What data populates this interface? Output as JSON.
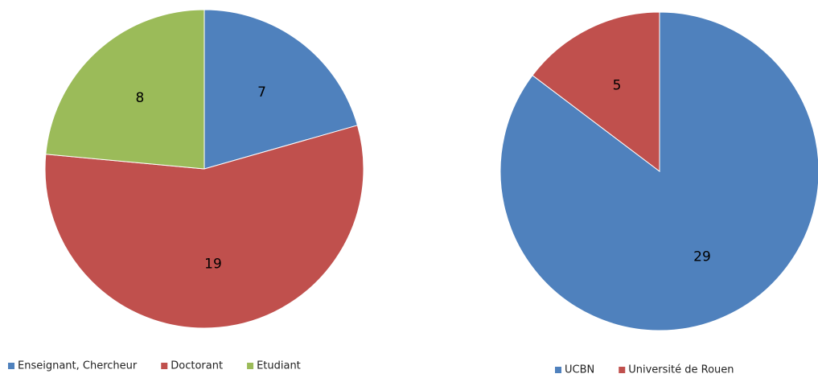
{
  "chart_data": [
    {
      "type": "pie",
      "categories": [
        "Enseignant, Chercheur",
        "Doctorant",
        "Etudiant"
      ],
      "values": [
        7,
        19,
        8
      ],
      "colors": [
        "#4f81bd",
        "#c0504d",
        "#9bbb59"
      ],
      "legend": "bottom"
    },
    {
      "type": "pie",
      "categories": [
        "UCBN",
        "Université de Rouen"
      ],
      "values": [
        29,
        5
      ],
      "colors": [
        "#4f81bd",
        "#c0504d"
      ],
      "legend": "bottom"
    }
  ]
}
